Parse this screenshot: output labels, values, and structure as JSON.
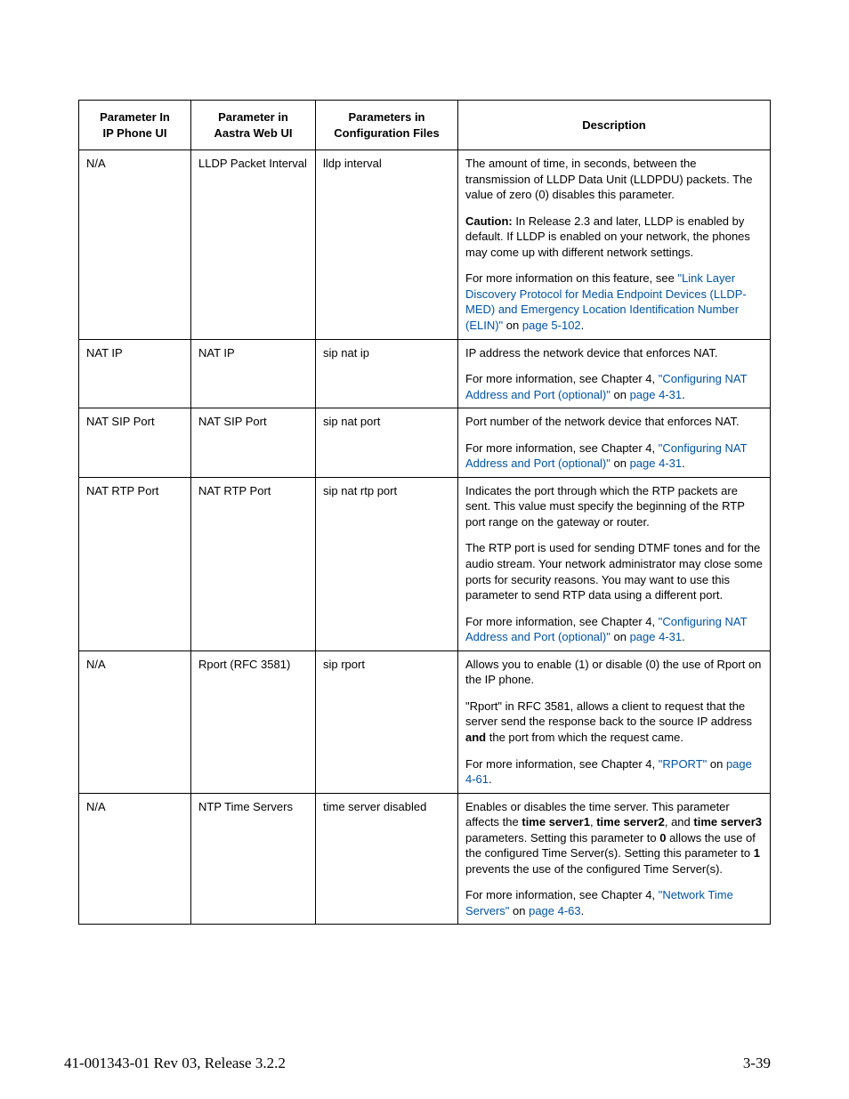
{
  "headers": {
    "col1_l1": "Parameter In",
    "col1_l2": "IP Phone UI",
    "col2_l1": "Parameter in",
    "col2_l2": "Aastra Web UI",
    "col3_l1": "Parameters in",
    "col3_l2": "Configuration Files",
    "col4": "Description"
  },
  "rows": {
    "r1": {
      "c1": "N/A",
      "c2": "LLDP Packet Interval",
      "c3": "lldp interval",
      "d1": "The amount of time, in seconds, between the transmission of LLDP Data Unit (LLDPDU) packets. The value of zero (0) disables this parameter.",
      "d2a": "Caution:",
      "d2b": " In Release 2.3 and later, LLDP is enabled by default. If LLDP is enabled on your network, the phones may come up with different network settings.",
      "d3a": "For more information on this feature, see ",
      "d3b": "\"Link Layer Discovery Protocol for Media Endpoint Devices (LLDP-MED) and Emergency Location Identification Number (ELIN)\"",
      "d3c": " on ",
      "d3d": "page 5-102",
      "d3e": "."
    },
    "r2": {
      "c1": "NAT IP",
      "c2": "NAT IP",
      "c3": "sip nat ip",
      "d1": "IP address the network device that enforces NAT.",
      "d2a": "For more information, see Chapter 4, ",
      "d2b": "\"Configuring NAT Address and Port (optional)\"",
      "d2c": " on ",
      "d2d": "page 4-31",
      "d2e": "."
    },
    "r3": {
      "c1": "NAT SIP Port",
      "c2": "NAT SIP Port",
      "c3": "sip nat port",
      "d1": "Port number of the network device that enforces NAT.",
      "d2a": "For more information, see Chapter 4, ",
      "d2b": "\"Configuring NAT Address and Port (optional)\"",
      "d2c": " on ",
      "d2d": "page 4-31",
      "d2e": "."
    },
    "r4": {
      "c1": "NAT RTP Port",
      "c2": "NAT RTP Port",
      "c3": "sip nat rtp port",
      "d1": "Indicates the port through which the RTP packets are sent. This value must specify the beginning of the RTP port range on the gateway or router.",
      "d2": "The RTP port is used for sending DTMF tones and for the audio stream. Your network administrator may close some ports for security reasons. You may want to use this parameter to send RTP data using a different port.",
      "d3a": "For more information, see Chapter 4, ",
      "d3b": "\"Configuring NAT Address and Port (optional)\"",
      "d3c": " on ",
      "d3d": "page 4-31",
      "d3e": "."
    },
    "r5": {
      "c1": "N/A",
      "c2": "Rport (RFC 3581)",
      "c3": "sip rport",
      "d1": "Allows you to enable (1) or disable (0) the use of Rport on the IP phone.",
      "d2a": "\"Rport\" in RFC 3581, allows a client to request that the server send the response back to the source IP address ",
      "d2b": "and",
      "d2c": " the port from which the request came.",
      "d3a": "For more information, see Chapter 4, ",
      "d3b": "\"RPORT\"",
      "d3c": " on ",
      "d3d": "page 4-61",
      "d3e": "."
    },
    "r6": {
      "c1": "N/A",
      "c2": "NTP Time Servers",
      "c3": "time server disabled",
      "d1a": "Enables or disables the time server. This parameter affects the ",
      "d1b": "time server1",
      "d1c": ", ",
      "d1d": "time server2",
      "d1e": ", and ",
      "d1f": "time server3",
      "d1g": " parameters. Setting this parameter to ",
      "d1h": "0",
      "d1i": " allows the use of the configured Time Server(s). Setting this parameter to ",
      "d1j": "1",
      "d1k": " prevents the use of the configured Time Server(s).",
      "d2a": "For more information, see Chapter 4, ",
      "d2b": "\"Network Time Servers\"",
      "d2c": " on ",
      "d2d": "page 4-63",
      "d2e": "."
    }
  },
  "footer": {
    "left": "41-001343-01 Rev 03, Release 3.2.2",
    "right": "3-39"
  }
}
